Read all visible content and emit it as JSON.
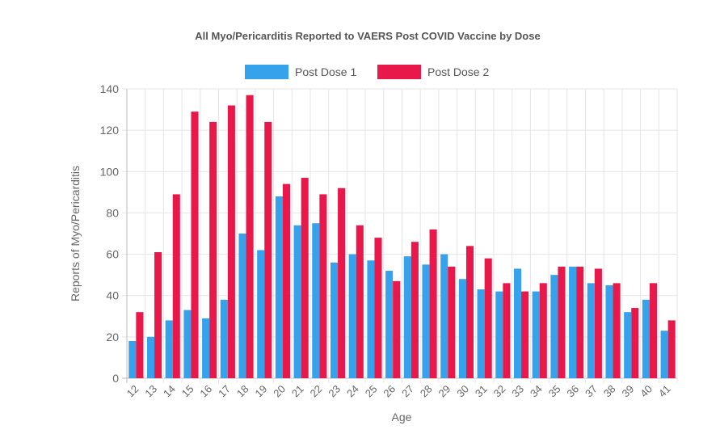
{
  "chart_data": {
    "type": "bar",
    "title": "All Myo/Pericarditis Reported to VAERS Post COVID Vaccine by Dose",
    "xlabel": "Age",
    "ylabel": "Reports of Myo/Pericarditis",
    "ylim": [
      0,
      140
    ],
    "yticks": [
      0,
      20,
      40,
      60,
      80,
      100,
      120,
      140
    ],
    "grid": true,
    "legend_position": "top",
    "categories": [
      "12",
      "13",
      "14",
      "15",
      "16",
      "17",
      "18",
      "19",
      "20",
      "21",
      "22",
      "23",
      "24",
      "25",
      "26",
      "27",
      "28",
      "29",
      "30",
      "31",
      "32",
      "33",
      "34",
      "35",
      "36",
      "37",
      "38",
      "39",
      "40",
      "41"
    ],
    "series": [
      {
        "name": "Post Dose 1",
        "color": "#36a2eb",
        "values": [
          18,
          20,
          28,
          33,
          29,
          38,
          70,
          62,
          88,
          74,
          75,
          56,
          60,
          57,
          52,
          59,
          55,
          60,
          48,
          43,
          42,
          53,
          42,
          50,
          54,
          46,
          45,
          32,
          38,
          23
        ]
      },
      {
        "name": "Post Dose 2",
        "color": "#e8194a",
        "values": [
          32,
          61,
          89,
          129,
          124,
          132,
          137,
          124,
          94,
          97,
          89,
          92,
          74,
          68,
          47,
          66,
          72,
          54,
          64,
          58,
          46,
          42,
          46,
          54,
          54,
          53,
          46,
          34,
          46,
          28
        ]
      }
    ]
  }
}
